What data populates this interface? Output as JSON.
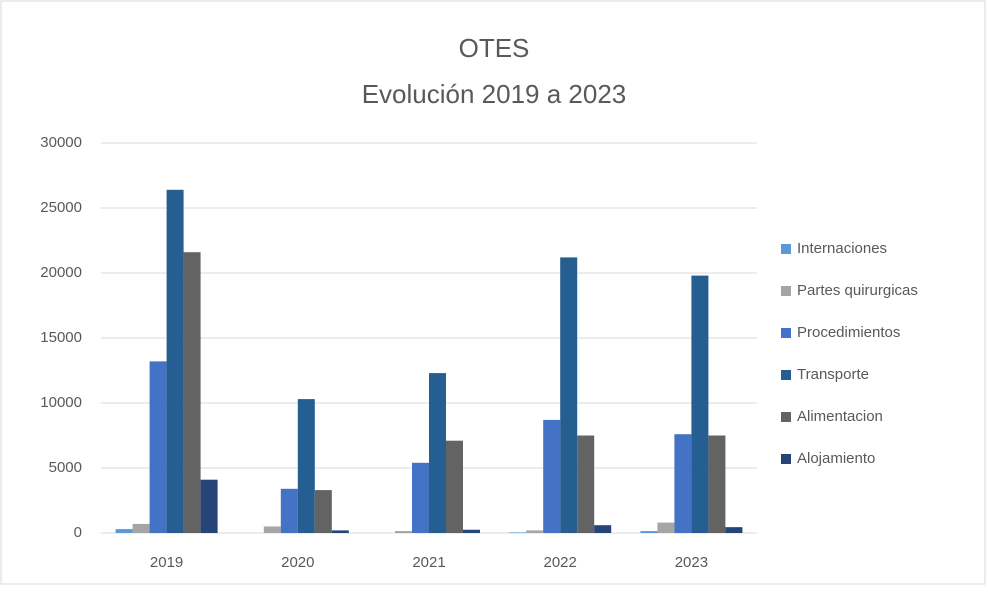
{
  "chart_data": {
    "type": "bar",
    "title": [
      "OTES",
      "Evolución 2019 a 2023"
    ],
    "categories": [
      "2019",
      "2020",
      "2021",
      "2022",
      "2023"
    ],
    "series": [
      {
        "name": "Internaciones",
        "color": "#5b9bd5",
        "values": [
          300,
          0,
          0,
          50,
          150
        ]
      },
      {
        "name": "Partes quirurgicas",
        "color": "#a5a5a5",
        "values": [
          700,
          500,
          150,
          200,
          800
        ]
      },
      {
        "name": "Procedimientos",
        "color": "#4472c4",
        "values": [
          13200,
          3400,
          5400,
          8700,
          7600
        ]
      },
      {
        "name": "Transporte",
        "color": "#255e91",
        "values": [
          26400,
          10300,
          12300,
          21200,
          19800
        ]
      },
      {
        "name": "Alimentacion",
        "color": "#636363",
        "values": [
          21600,
          3300,
          7100,
          7500,
          7500
        ]
      },
      {
        "name": "Alojamiento",
        "color": "#264478",
        "values": [
          4100,
          200,
          250,
          600,
          450
        ]
      }
    ],
    "ylim": [
      0,
      30000
    ],
    "yticks": [
      0,
      5000,
      10000,
      15000,
      20000,
      25000,
      30000
    ],
    "grid": true,
    "legend": "right"
  }
}
